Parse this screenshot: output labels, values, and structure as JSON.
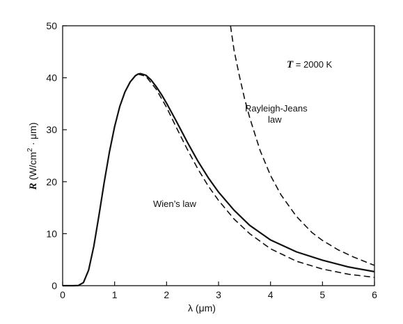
{
  "chart_data": {
    "type": "line",
    "title": "",
    "temperature_label": {
      "symbol": "T",
      "equals": " = ",
      "value": "2000 K"
    },
    "xlabel": {
      "symbol": "λ",
      "unit": " (μm)"
    },
    "ylabel": {
      "symbol": "R",
      "unit_prefix": " (W/cm",
      "unit_exp": "2",
      "unit_suffix": " · μm)"
    },
    "xlim": [
      0,
      6
    ],
    "ylim": [
      0,
      50
    ],
    "x_ticks": [
      0,
      1,
      2,
      3,
      4,
      5,
      6
    ],
    "y_ticks": [
      0,
      10,
      20,
      30,
      40,
      50
    ],
    "grid": false,
    "series": [
      {
        "style": "solid",
        "x": [
          0.2,
          0.3,
          0.4,
          0.5,
          0.6,
          0.7,
          0.8,
          0.9,
          1.0,
          1.1,
          1.2,
          1.3,
          1.4,
          1.45,
          1.5,
          1.6,
          1.7,
          1.8,
          1.9,
          2.0,
          2.2,
          2.4,
          2.6,
          2.8,
          3.0,
          3.3,
          3.6,
          4.0,
          4.5,
          5.0,
          5.5,
          6.0
        ],
        "y": [
          0.0,
          0.03,
          0.6,
          3.0,
          7.6,
          13.6,
          19.9,
          25.7,
          30.6,
          34.5,
          37.3,
          39.2,
          40.4,
          40.7,
          40.8,
          40.5,
          39.6,
          38.3,
          36.8,
          35.1,
          31.4,
          27.6,
          24.0,
          20.8,
          18.0,
          14.5,
          11.6,
          8.8,
          6.5,
          4.9,
          3.6,
          2.7
        ]
      },
      {
        "style": "dashed",
        "x": [
          1.45,
          1.6,
          1.8,
          2.0,
          2.2,
          2.4,
          2.6,
          2.8,
          3.0,
          3.3,
          3.6,
          4.0,
          4.5,
          5.0,
          5.5,
          6.0
        ],
        "y": [
          40.7,
          40.3,
          37.8,
          34.3,
          30.2,
          26.2,
          22.5,
          19.2,
          16.4,
          12.8,
          10.0,
          7.1,
          4.7,
          3.2,
          2.2,
          1.6
        ]
      },
      {
        "style": "dashed",
        "x": [
          3.23,
          3.3,
          3.4,
          3.5,
          3.6,
          3.8,
          4.0,
          4.2,
          4.5,
          4.8,
          5.0,
          5.3,
          5.6,
          6.0
        ],
        "y": [
          50.0,
          45.2,
          40.4,
          36.0,
          32.3,
          26.0,
          21.2,
          17.5,
          13.3,
          10.2,
          8.7,
          6.9,
          5.5,
          3.9
        ]
      }
    ],
    "annotations": {
      "rayleigh_line1": "Rayleigh-Jeans",
      "rayleigh_line2": "law",
      "wien": "Wien’s law"
    }
  }
}
